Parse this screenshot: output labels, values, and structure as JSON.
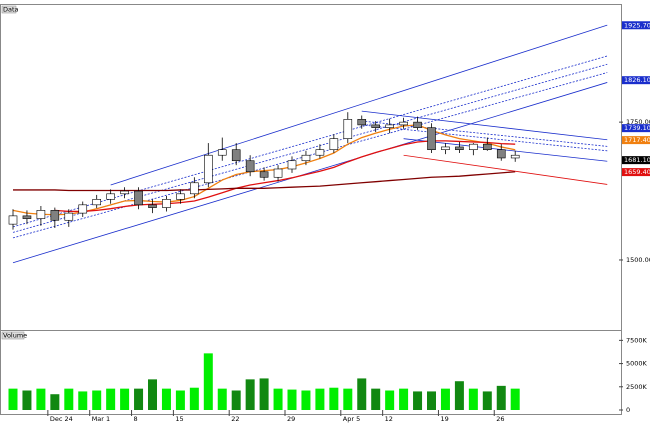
{
  "chart_data": [
    {
      "type": "candlestick",
      "title": "Data",
      "ylim": [
        1373,
        1957
      ],
      "yticks": [
        {
          "value": 1750,
          "label": "1750.00"
        },
        {
          "value": 1500,
          "label": "1500.00"
        }
      ],
      "up_color": "#ffffff",
      "down_color": "#808080",
      "open": [
        1565,
        1580,
        1575,
        1590,
        1572,
        1585,
        1600,
        1610,
        1620,
        1625,
        1600,
        1595,
        1610,
        1620,
        1640,
        1690,
        1700,
        1680,
        1660,
        1650,
        1665,
        1680,
        1690,
        1700,
        1720,
        1755,
        1745,
        1740,
        1745,
        1750,
        1740,
        1700,
        1705,
        1700,
        1710,
        1700,
        1685
      ],
      "high": [
        1592,
        1590,
        1598,
        1595,
        1592,
        1606,
        1618,
        1628,
        1632,
        1632,
        1610,
        1616,
        1628,
        1650,
        1712,
        1722,
        1712,
        1690,
        1668,
        1672,
        1688,
        1698,
        1710,
        1728,
        1768,
        1762,
        1752,
        1756,
        1758,
        1760,
        1748,
        1712,
        1714,
        1712,
        1722,
        1710,
        1698
      ],
      "low": [
        1555,
        1565,
        1562,
        1558,
        1560,
        1578,
        1594,
        1602,
        1612,
        1592,
        1585,
        1588,
        1602,
        1612,
        1632,
        1680,
        1672,
        1652,
        1644,
        1642,
        1658,
        1672,
        1684,
        1694,
        1712,
        1738,
        1732,
        1730,
        1738,
        1736,
        1694,
        1692,
        1694,
        1690,
        1698,
        1680,
        1678
      ],
      "close": [
        1580,
        1575,
        1590,
        1572,
        1585,
        1600,
        1610,
        1620,
        1625,
        1600,
        1595,
        1610,
        1620,
        1640,
        1690,
        1700,
        1680,
        1660,
        1650,
        1665,
        1680,
        1690,
        1700,
        1720,
        1755,
        1745,
        1740,
        1745,
        1750,
        1740,
        1700,
        1705,
        1700,
        1710,
        1700,
        1685,
        1690
      ],
      "series": [
        {
          "color": "#f08010",
          "values": [
            1590,
            1585,
            1583,
            1582,
            1583,
            1587,
            1593,
            1600,
            1607,
            1608,
            1606,
            1605,
            1608,
            1615,
            1630,
            1645,
            1655,
            1660,
            1662,
            1664,
            1669,
            1676,
            1684,
            1694,
            1710,
            1722,
            1730,
            1737,
            1743,
            1745,
            1735,
            1727,
            1720,
            1716,
            1712,
            1705,
            1700
          ]
        },
        {
          "color": "#e01010",
          "values": [
            null,
            null,
            null,
            1590,
            1588,
            1588,
            1590,
            1593,
            1597,
            1600,
            1601,
            1602,
            1604,
            1607,
            1614,
            1622,
            1630,
            1636,
            1640,
            1644,
            1649,
            1655,
            1661,
            1668,
            1678,
            1687,
            1695,
            1702,
            1709,
            1714,
            1716,
            1716,
            1715,
            1714,
            1713,
            1711,
            1710
          ]
        },
        {
          "color": "#800000",
          "values": [
            1627,
            1627,
            1627,
            1627,
            1626,
            1626,
            1626,
            1626,
            1626,
            1626,
            1626,
            1626,
            1627,
            1627,
            1628,
            1629,
            1630,
            1630,
            1630,
            1631,
            1632,
            1633,
            1634,
            1636,
            1638,
            1640,
            1642,
            1644,
            1646,
            1648,
            1650,
            1651,
            1652,
            1654,
            1656,
            1658,
            1660
          ]
        }
      ],
      "trendlines": [
        {
          "color": "#1a2ecc",
          "dash": false,
          "x": [
            7,
            42.6
          ],
          "values": [
            1636,
            1926
          ]
        },
        {
          "color": "#1a2ecc",
          "dash": false,
          "x": [
            0,
            42.6
          ],
          "values": [
            1495,
            1822
          ]
        },
        {
          "color": "#1a2ecc",
          "dash": true,
          "x": [
            0,
            42.6
          ],
          "values": [
            1560,
            1870
          ]
        },
        {
          "color": "#1a2ecc",
          "dash": true,
          "x": [
            0,
            42.6
          ],
          "values": [
            1550,
            1855
          ]
        },
        {
          "color": "#1a2ecc",
          "dash": true,
          "x": [
            0,
            42.6
          ],
          "values": [
            1540,
            1840
          ]
        },
        {
          "color": "#1a2ecc",
          "dash": false,
          "x": [
            25,
            42.6
          ],
          "values": [
            1770,
            1718
          ]
        },
        {
          "color": "#1a2ecc",
          "dash": true,
          "x": [
            25,
            42.6
          ],
          "values": [
            1752,
            1706
          ]
        },
        {
          "color": "#1a2ecc",
          "dash": true,
          "x": [
            25,
            42.6
          ],
          "values": [
            1745,
            1698
          ]
        },
        {
          "color": "#1a2ecc",
          "dash": false,
          "x": [
            28,
            42.6
          ],
          "values": [
            1720,
            1679
          ]
        },
        {
          "color": "#e01010",
          "dash": false,
          "x": [
            28,
            42.6
          ],
          "values": [
            1690,
            1637
          ]
        }
      ],
      "price_tags": [
        {
          "value": 1925.7,
          "label": "1925.70",
          "color": "#1a2ecc"
        },
        {
          "value": 1826.1,
          "label": "1826.10",
          "color": "#1a2ecc"
        },
        {
          "value": 1739.1,
          "label": "1739.10",
          "color": "#1a2ecc"
        },
        {
          "value": 1717.4,
          "label": "1717.40",
          "color": "#f08010"
        },
        {
          "value": 1681.1,
          "label": "1681.10",
          "color": "#000000"
        },
        {
          "value": 1659.4,
          "label": "1659.40",
          "color": "#e01010"
        }
      ]
    },
    {
      "type": "bar",
      "title": "Volume",
      "ylim": [
        0,
        8400
      ],
      "yticks": [
        {
          "value": 7500,
          "label": "7500K"
        },
        {
          "value": 5000,
          "label": "5000K"
        },
        {
          "value": 2500,
          "label": "2500K"
        },
        0
      ],
      "categories": [
        null,
        null,
        null,
        "Dec 24",
        null,
        null,
        "Mar 1",
        null,
        null,
        "8",
        null,
        null,
        "15",
        null,
        null,
        null,
        "22",
        null,
        null,
        null,
        "29",
        null,
        null,
        null,
        "Apr 5",
        null,
        null,
        "12",
        null,
        null,
        null,
        "19",
        null,
        null,
        null,
        "26",
        null
      ],
      "values": [
        2300,
        2100,
        2300,
        1700,
        2300,
        2000,
        2100,
        2300,
        2300,
        2300,
        3300,
        2300,
        2100,
        2400,
        6100,
        2300,
        2100,
        3300,
        3400,
        2300,
        2200,
        2100,
        2300,
        2400,
        2300,
        3400,
        2300,
        2100,
        2300,
        2000,
        2000,
        2300,
        3100,
        2300,
        2000,
        2600,
        2300
      ],
      "colors": [
        "#00ee00",
        "#118811",
        "#00ee00",
        "#118811",
        "#00ee00",
        "#00ee00",
        "#00ee00",
        "#00ee00",
        "#00ee00",
        "#118811",
        "#118811",
        "#00ee00",
        "#00ee00",
        "#00ee00",
        "#00ee00",
        "#00ee00",
        "#118811",
        "#118811",
        "#118811",
        "#00ee00",
        "#00ee00",
        "#00ee00",
        "#00ee00",
        "#00ee00",
        "#00ee00",
        "#118811",
        "#118811",
        "#00ee00",
        "#00ee00",
        "#118811",
        "#118811",
        "#00ee00",
        "#118811",
        "#00ee00",
        "#118811",
        "#118811",
        "#00ee00"
      ]
    }
  ]
}
